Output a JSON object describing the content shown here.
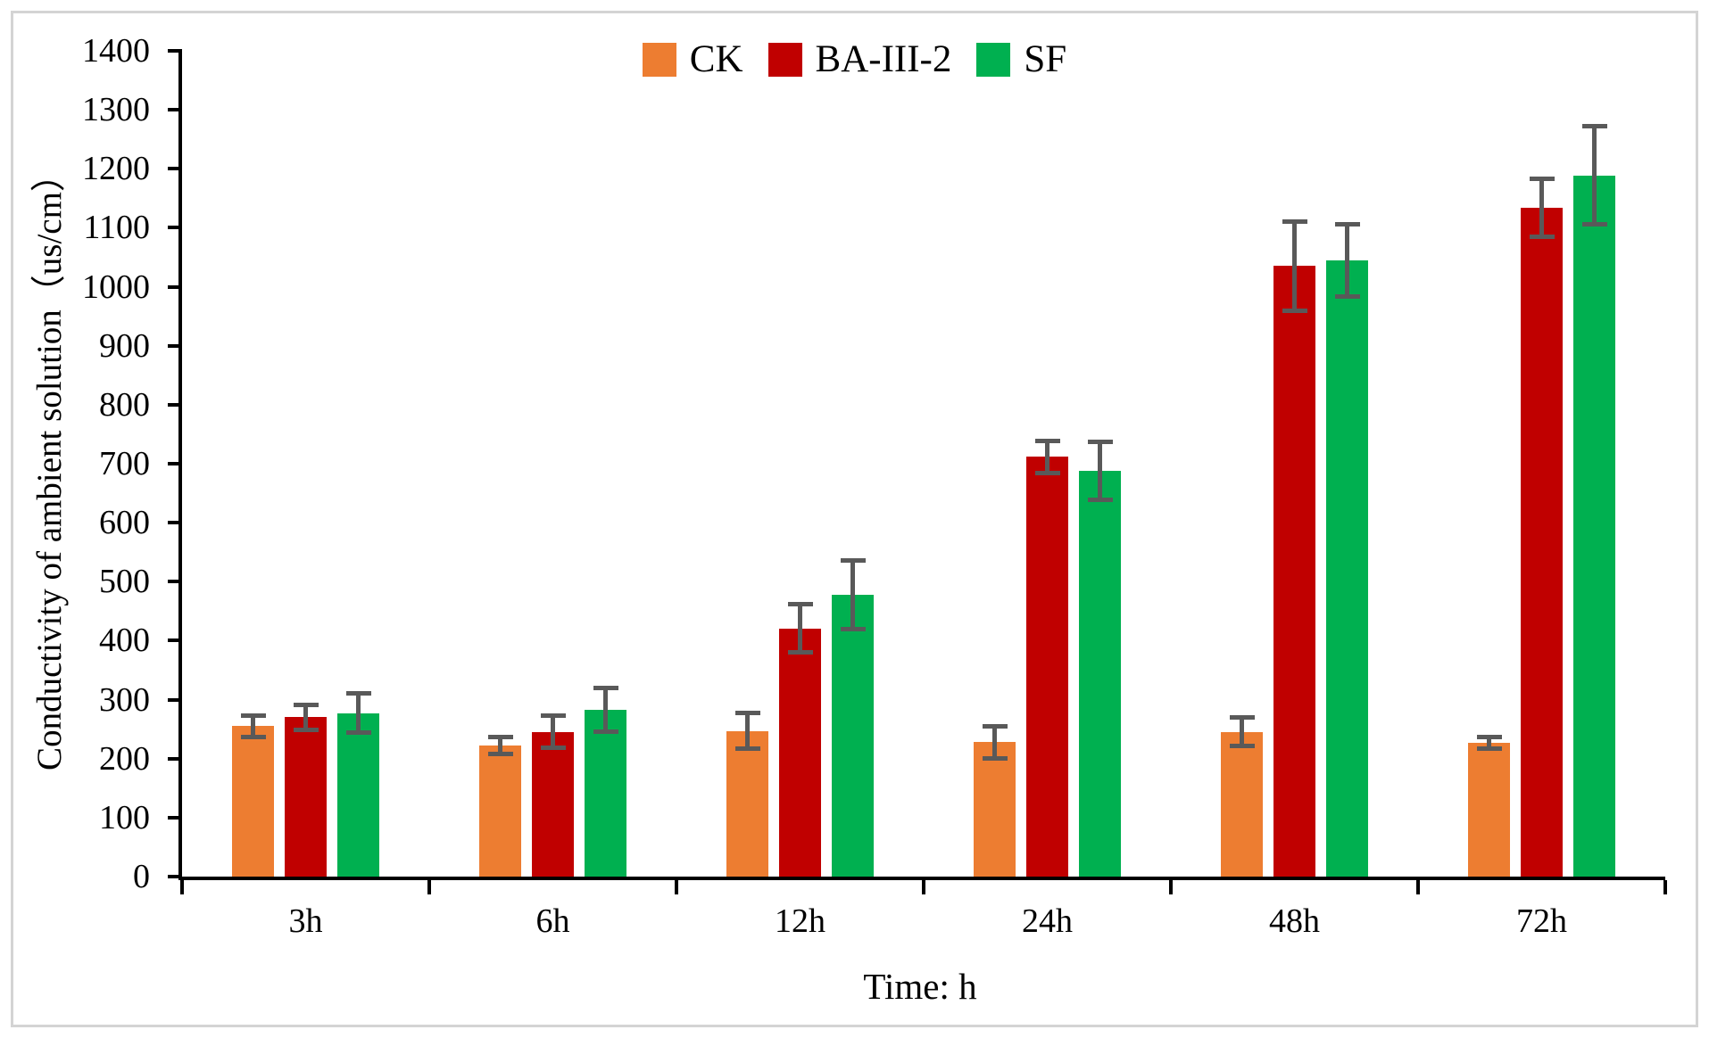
{
  "frame": {
    "border_color": "#d4d4d4",
    "background": "#ffffff"
  },
  "chart_data": {
    "type": "bar",
    "title": "",
    "xlabel": "Time: h",
    "ylabel": "Conductivity of ambient solution（us/cm）",
    "categories": [
      "3h",
      "6h",
      "12h",
      "24h",
      "48h",
      "72h"
    ],
    "series": [
      {
        "name": "CK",
        "color": "#ED7D31",
        "values": [
          255,
          222,
          247,
          228,
          245,
          227
        ],
        "errors": [
          22,
          18,
          34,
          31,
          28,
          14
        ]
      },
      {
        "name": "BA-III-2",
        "color": "#C00000",
        "values": [
          270,
          245,
          421,
          712,
          1035,
          1134
        ],
        "errors": [
          25,
          31,
          45,
          31,
          79,
          53
        ]
      },
      {
        "name": "SF",
        "color": "#00B050",
        "values": [
          277,
          283,
          478,
          688,
          1044,
          1189
        ],
        "errors": [
          37,
          41,
          62,
          53,
          65,
          87
        ]
      }
    ],
    "ylim": [
      0,
      1400
    ],
    "ytick_step": 100,
    "ytick_labels": [
      "0",
      "100",
      "200",
      "300",
      "400",
      "500",
      "600",
      "700",
      "800",
      "900",
      "1000",
      "1100",
      "1200",
      "1300",
      "1400"
    ],
    "grid": false,
    "legend_position": "top-center",
    "error_bar_color": "#595959",
    "axis_color": "#000000"
  }
}
